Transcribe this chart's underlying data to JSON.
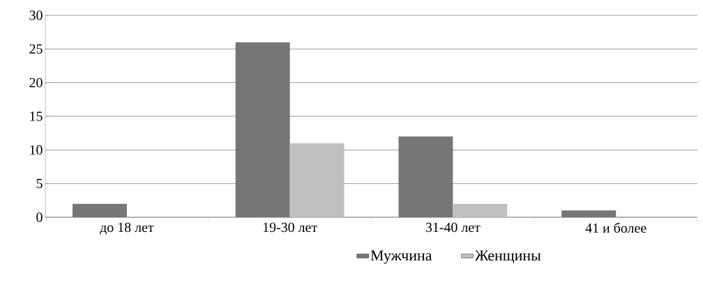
{
  "chart_data": {
    "type": "bar",
    "categories": [
      "до 18 лет",
      "19-30 лет",
      "31-40 лет",
      "41 и более"
    ],
    "series": [
      {
        "name": "Мужчина",
        "color": "#767676",
        "values": [
          2,
          26,
          12,
          1
        ]
      },
      {
        "name": "Женщины",
        "color": "#c0c0c0",
        "values": [
          0,
          11,
          2,
          0
        ]
      }
    ],
    "ylim": [
      0,
      30
    ],
    "yticks": [
      0,
      5,
      10,
      15,
      20,
      25,
      30
    ],
    "grid": "y",
    "legend": "bottom"
  }
}
